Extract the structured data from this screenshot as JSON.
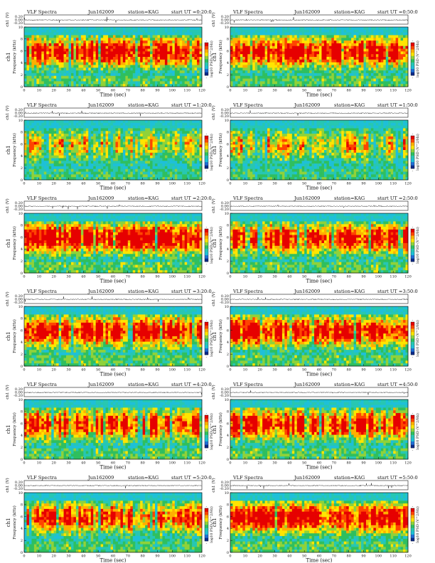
{
  "figure": {
    "title_prefix": "VLF Spectra",
    "station": "station=KAG",
    "date_label": "Jun162009",
    "channel_label": "ch1",
    "amp_label": "ch1 (V)",
    "freq_label": "Frequency (kHz)",
    "time_label": "Time (sec)",
    "colorbar_label": "log10 PSD (V^2/Hz)",
    "colorbar_min": "-",
    "colorbar_max": "-"
  },
  "colors": {
    "colormap": [
      "#0a2a8a",
      "#1f6fd6",
      "#1ec0d8",
      "#27c7b2",
      "#2fbf5f",
      "#8fd23a",
      "#ffe500",
      "#ffb000",
      "#ff4500",
      "#e60000"
    ],
    "cyan_band": "#26c6e6",
    "axis": "#111111"
  },
  "chart_data": [
    {
      "type": "heatmap",
      "title": "VLF Spectra Jun162009 station=KAG start UT =0:20:0",
      "start_ut": "=0:20:0",
      "date": "Jun162009",
      "xlabel": "Time (sec)",
      "ylabel": "Frequency (kHz)",
      "xlim": [
        0,
        120
      ],
      "ylim": [
        0,
        10
      ],
      "x_ticks": [
        0,
        10,
        20,
        30,
        40,
        50,
        60,
        70,
        80,
        90,
        100,
        110,
        120
      ],
      "y_ticks": [
        0,
        2,
        4,
        6,
        8,
        10
      ],
      "amp_ylabel": "ch1 (V)",
      "amp_ticks": [
        "0.20",
        "0.00",
        "-0.20"
      ],
      "amp_baseline": 0.0,
      "colorbar_label": "log10 PSD (V^2/Hz)",
      "intensity": 0.84
    },
    {
      "type": "heatmap",
      "title": "VLF Spectra Jun162009 station=KAG start UT =0:50:0",
      "start_ut": "=0:50:0",
      "date": "Jun162009",
      "xlabel": "Time (sec)",
      "ylabel": "Frequency (kHz)",
      "xlim": [
        0,
        120
      ],
      "ylim": [
        0,
        10
      ],
      "x_ticks": [
        0,
        10,
        20,
        30,
        40,
        50,
        60,
        70,
        80,
        90,
        100,
        110,
        120
      ],
      "y_ticks": [
        0,
        2,
        4,
        6,
        8,
        10
      ],
      "amp_ylabel": "ch1 (V)",
      "amp_ticks": [
        "0.20",
        "0.00",
        "-0.20"
      ],
      "amp_baseline": 0.0,
      "colorbar_label": "log10 PSD (V^2/Hz)",
      "intensity": 0.82
    },
    {
      "type": "heatmap",
      "title": "VLF Spectra Jun162009 station=KAG start UT =1:20:0",
      "start_ut": "=1:20:0",
      "date": "Jun162009",
      "xlabel": "Time (sec)",
      "ylabel": "Frequency (kHz)",
      "xlim": [
        0,
        120
      ],
      "ylim": [
        0,
        10
      ],
      "x_ticks": [
        0,
        10,
        20,
        30,
        40,
        50,
        60,
        70,
        80,
        90,
        100,
        110,
        120
      ],
      "y_ticks": [
        0,
        2,
        4,
        6,
        8,
        10
      ],
      "amp_ylabel": "ch1 (V)",
      "amp_ticks": [
        "0.20",
        "0.00",
        "-0.20"
      ],
      "amp_baseline": 0.0,
      "colorbar_label": "log10 PSD (V^2/Hz)",
      "intensity": 0.42
    },
    {
      "type": "heatmap",
      "title": "VLF Spectra Jun162009 station=KAG start UT =1:50:0",
      "start_ut": "=1:50:0",
      "date": "Jun162009",
      "xlabel": "Time (sec)",
      "ylabel": "Frequency (kHz)",
      "xlim": [
        0,
        120
      ],
      "ylim": [
        0,
        10
      ],
      "x_ticks": [
        0,
        10,
        20,
        30,
        40,
        50,
        60,
        70,
        80,
        90,
        100,
        110,
        120
      ],
      "y_ticks": [
        0,
        2,
        4,
        6,
        8,
        10
      ],
      "amp_ylabel": "ch1 (V)",
      "amp_ticks": [
        "0.20",
        "0.00",
        "-0.20"
      ],
      "amp_baseline": 0.0,
      "colorbar_label": "log10 PSD (V^2/Hz)",
      "intensity": 0.46
    },
    {
      "type": "heatmap",
      "title": "VLF Spectra Jun162009 station=KAG start UT =2:20:0",
      "start_ut": "=2:20:0",
      "date": "Jun162009",
      "xlabel": "Time (sec)",
      "ylabel": "Frequency (kHz)",
      "xlim": [
        0,
        120
      ],
      "ylim": [
        0,
        10
      ],
      "x_ticks": [
        0,
        10,
        20,
        30,
        40,
        50,
        60,
        70,
        80,
        90,
        100,
        110,
        120
      ],
      "y_ticks": [
        0,
        2,
        4,
        6,
        8,
        10
      ],
      "amp_ylabel": "ch1 (V)",
      "amp_ticks": [
        "0.20",
        "0.00",
        "-0.20"
      ],
      "amp_baseline": 0.0,
      "colorbar_label": "log10 PSD (V^2/Hz)",
      "intensity": 0.88
    },
    {
      "type": "heatmap",
      "title": "VLF Spectra Jun162009 station=KAG start UT =2:50:0",
      "start_ut": "=2:50:0",
      "date": "Jun162009",
      "xlabel": "Time (sec)",
      "ylabel": "Frequency (kHz)",
      "xlim": [
        0,
        120
      ],
      "ylim": [
        0,
        10
      ],
      "x_ticks": [
        0,
        10,
        20,
        30,
        40,
        50,
        60,
        70,
        80,
        90,
        100,
        110,
        120
      ],
      "y_ticks": [
        0,
        2,
        4,
        6,
        8,
        10
      ],
      "amp_ylabel": "ch1 (V)",
      "amp_ticks": [
        "0.20",
        "0.00",
        "-0.20"
      ],
      "amp_baseline": 0.0,
      "colorbar_label": "log10 PSD (V^2/Hz)",
      "intensity": 0.8
    },
    {
      "type": "heatmap",
      "title": "VLF Spectra Jun162009 station=KAG start UT =3:20:0",
      "start_ut": "=3:20:0",
      "date": "Jun162009",
      "xlabel": "Time (sec)",
      "ylabel": "Frequency (kHz)",
      "xlim": [
        0,
        120
      ],
      "ylim": [
        0,
        10
      ],
      "x_ticks": [
        0,
        10,
        20,
        30,
        40,
        50,
        60,
        70,
        80,
        90,
        100,
        110,
        120
      ],
      "y_ticks": [
        0,
        2,
        4,
        6,
        8,
        10
      ],
      "amp_ylabel": "ch1 (V)",
      "amp_ticks": [
        "0.20",
        "0.00",
        "-0.20"
      ],
      "amp_baseline": 0.0,
      "colorbar_label": "log10 PSD (V^2/Hz)",
      "intensity": 0.86
    },
    {
      "type": "heatmap",
      "title": "VLF Spectra Jun162009 station=KAG start UT =3:50:0",
      "start_ut": "=3:50:0",
      "date": "Jun162009",
      "xlabel": "Time (sec)",
      "ylabel": "Frequency (kHz)",
      "xlim": [
        0,
        120
      ],
      "ylim": [
        0,
        10
      ],
      "x_ticks": [
        0,
        10,
        20,
        30,
        40,
        50,
        60,
        70,
        80,
        90,
        100,
        110,
        120
      ],
      "y_ticks": [
        0,
        2,
        4,
        6,
        8,
        10
      ],
      "amp_ylabel": "ch1 (V)",
      "amp_ticks": [
        "0.20",
        "0.00",
        "-0.20"
      ],
      "amp_baseline": 0.0,
      "colorbar_label": "log10 PSD (V^2/Hz)",
      "intensity": 0.86
    },
    {
      "type": "heatmap",
      "title": "VLF Spectra Jun162009 station=KAG start UT =4:20:0",
      "start_ut": "=4:20:0",
      "date": "Jun162009",
      "xlabel": "Time (sec)",
      "ylabel": "Frequency (kHz)",
      "xlim": [
        0,
        120
      ],
      "ylim": [
        0,
        10
      ],
      "x_ticks": [
        0,
        10,
        20,
        30,
        40,
        50,
        60,
        70,
        80,
        90,
        100,
        110,
        120
      ],
      "y_ticks": [
        0,
        2,
        4,
        6,
        8,
        10
      ],
      "amp_ylabel": "ch1 (V)",
      "amp_ticks": [
        "0.20",
        "0.00",
        "-0.20"
      ],
      "amp_baseline": 0.0,
      "colorbar_label": "log10 PSD (V^2/Hz)",
      "intensity": 0.78
    },
    {
      "type": "heatmap",
      "title": "VLF Spectra Jun162009 station=KAG start UT =4:50:0",
      "start_ut": "=4:50:0",
      "date": "Jun162009",
      "xlabel": "Time (sec)",
      "ylabel": "Frequency (kHz)",
      "xlim": [
        0,
        120
      ],
      "ylim": [
        0,
        10
      ],
      "x_ticks": [
        0,
        10,
        20,
        30,
        40,
        50,
        60,
        70,
        80,
        90,
        100,
        110,
        120
      ],
      "y_ticks": [
        0,
        2,
        4,
        6,
        8,
        10
      ],
      "amp_ylabel": "ch1 (V)",
      "amp_ticks": [
        "0.20",
        "0.00",
        "-0.20"
      ],
      "amp_baseline": 0.0,
      "colorbar_label": "log10 PSD (V^2/Hz)",
      "intensity": 0.8
    },
    {
      "type": "heatmap",
      "title": "VLF Spectra Jun162009 station=KAG start UT =5:20:0",
      "start_ut": "=5:20:0",
      "date": "Jun162009",
      "xlabel": "Time (sec)",
      "ylabel": "Frequency (kHz)",
      "xlim": [
        0,
        120
      ],
      "ylim": [
        0,
        10
      ],
      "x_ticks": [
        0,
        10,
        20,
        30,
        40,
        50,
        60,
        70,
        80,
        90,
        100,
        110,
        120
      ],
      "y_ticks": [
        0,
        2,
        4,
        6,
        8,
        10
      ],
      "amp_ylabel": "ch1 (V)",
      "amp_ticks": [
        "0.20",
        "0.00",
        "-0.20"
      ],
      "amp_baseline": 0.0,
      "colorbar_label": "log10 PSD (V^2/Hz)",
      "intensity": 0.76
    },
    {
      "type": "heatmap",
      "title": "VLF Spectra Jun162009 station=KAG start UT =5:50:0",
      "start_ut": "=5:50:0",
      "date": "Jun162009",
      "xlabel": "Time (sec)",
      "ylabel": "Frequency (kHz)",
      "xlim": [
        0,
        120
      ],
      "ylim": [
        0,
        10
      ],
      "x_ticks": [
        0,
        10,
        20,
        30,
        40,
        50,
        60,
        70,
        80,
        90,
        100,
        110,
        120
      ],
      "y_ticks": [
        0,
        2,
        4,
        6,
        8,
        10
      ],
      "amp_ylabel": "ch1 (V)",
      "amp_ticks": [
        "0.20",
        "0.00",
        "-0.20"
      ],
      "amp_baseline": 0.0,
      "colorbar_label": "log10 PSD (V^2/Hz)",
      "intensity": 0.82
    }
  ]
}
